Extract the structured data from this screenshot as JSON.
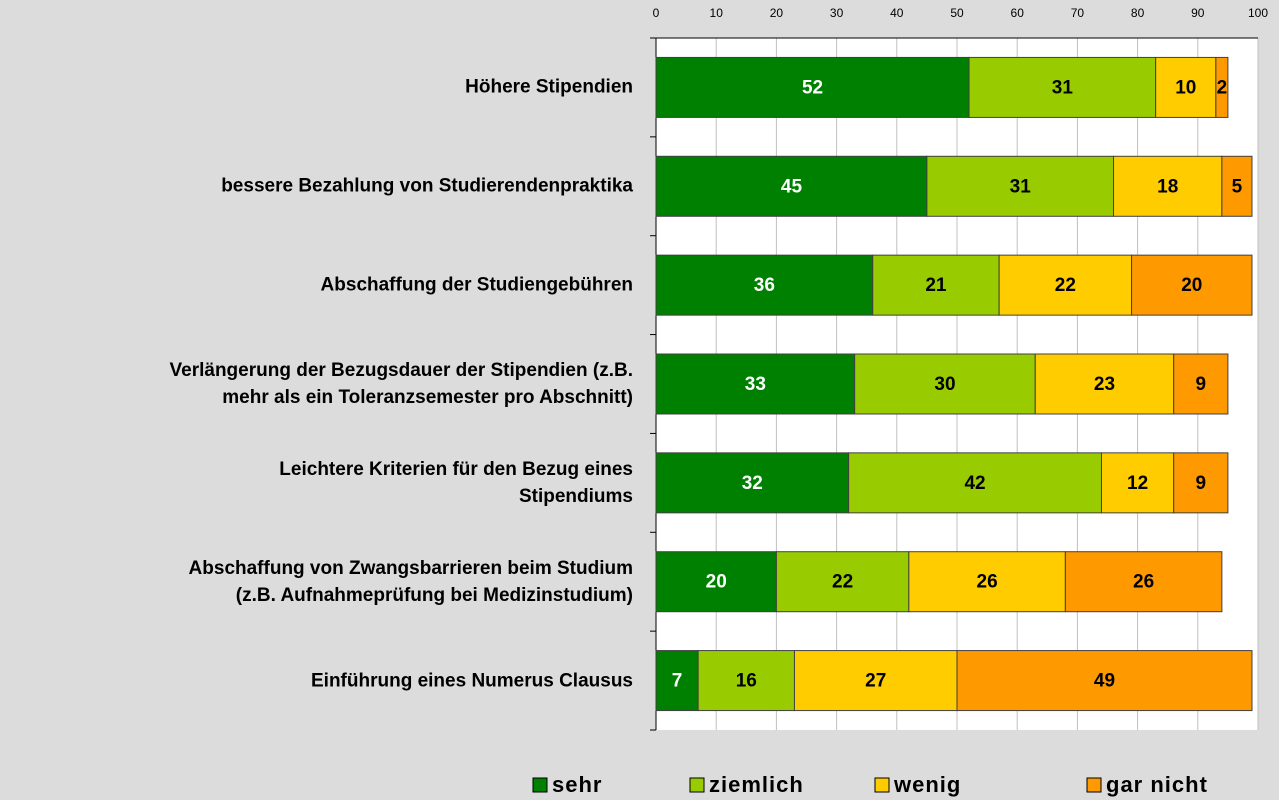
{
  "chart_data": {
    "type": "stacked_bar_horizontal",
    "categories": [
      "Höhere Stipendien",
      "bessere Bezahlung von Studierendenpraktika",
      "Abschaffung der Studiengebühren",
      "Verlängerung der Bezugsdauer der Stipendien (z.B.\nmehr als ein Toleranzsemester pro Abschnitt)",
      "Leichtere Kriterien für den Bezug eines\nStipendiums",
      "Abschaffung von Zwangsbarrieren beim Studium\n(z.B. Aufnahmeprüfung bei Medizinstudium)",
      "Einführung eines Numerus Clausus"
    ],
    "series": [
      {
        "name": "sehr",
        "color": "#008000",
        "values": [
          52,
          45,
          36,
          33,
          32,
          20,
          7
        ]
      },
      {
        "name": "ziemlich",
        "color": "#99cc00",
        "values": [
          31,
          31,
          21,
          30,
          42,
          22,
          16
        ]
      },
      {
        "name": "wenig",
        "color": "#ffcc00",
        "values": [
          10,
          18,
          22,
          23,
          12,
          26,
          27
        ]
      },
      {
        "name": "gar nicht",
        "color": "#ff9900",
        "values": [
          2,
          5,
          20,
          9,
          9,
          26,
          49
        ]
      }
    ],
    "xlim": [
      0,
      100
    ],
    "xticks": [
      0,
      10,
      20,
      30,
      40,
      50,
      60,
      70,
      80,
      90,
      100
    ],
    "grid": true,
    "legend": "bottom"
  }
}
